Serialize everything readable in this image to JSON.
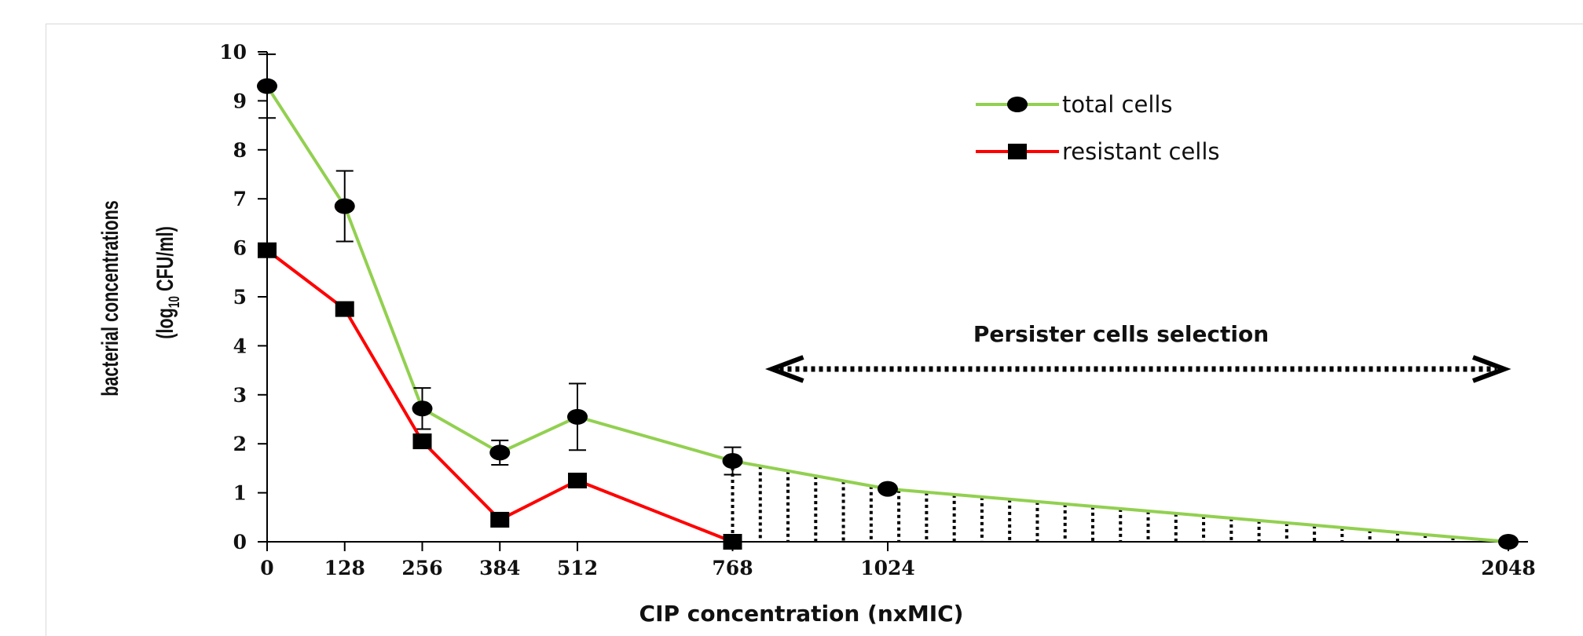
{
  "chart_data": {
    "type": "line",
    "x": [
      0,
      128,
      256,
      384,
      512,
      768,
      1024,
      2048
    ],
    "x_tick_labels": [
      "0",
      "128",
      "256",
      "384",
      "512",
      "768",
      "1024",
      "2048"
    ],
    "y_tick_labels": [
      "0",
      "1",
      "2",
      "3",
      "4",
      "5",
      "6",
      "7",
      "8",
      "9",
      "10"
    ],
    "ylim": [
      0,
      10
    ],
    "xlabel": "CIP concentration   (nxMIC)",
    "ylabel_line1": "bacterial concentrations",
    "ylabel_line2_prefix": "(log",
    "ylabel_line2_sub": "10",
    "ylabel_line2_suffix": " CFU/ml)",
    "grid": false,
    "legend_position": "top-right",
    "series": [
      {
        "name": "total cells",
        "color": "#92d050",
        "marker": "circle",
        "x": [
          0,
          128,
          256,
          384,
          512,
          768,
          1024,
          2048
        ],
        "values": [
          9.3,
          6.85,
          2.72,
          1.82,
          2.55,
          1.65,
          1.08,
          0.0
        ],
        "error": [
          0.65,
          0.72,
          0.42,
          0.25,
          0.68,
          0.28,
          0.0,
          0.0
        ]
      },
      {
        "name": "resistant cells",
        "color": "#ff0000",
        "marker": "square",
        "x": [
          0,
          128,
          256,
          384,
          512,
          768
        ],
        "values": [
          5.95,
          4.75,
          2.05,
          0.45,
          1.25,
          0.0
        ]
      }
    ],
    "annotation": {
      "text": "Persister cells selection",
      "x_start": 768,
      "x_end": 2048
    }
  }
}
